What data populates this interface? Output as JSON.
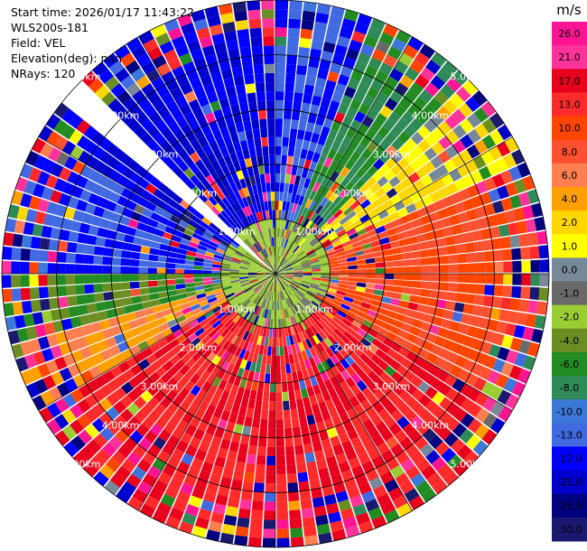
{
  "info": {
    "start_time": "Start time: 2026/01/17 11:43:22",
    "instrument": "WLS200s-181",
    "field": "Field: VEL",
    "elevation": "Elevation(deg): nan",
    "nrays": "NRays: 120"
  },
  "chart_data": {
    "type": "heatmap",
    "subtype": "polar-ppi",
    "field": "VEL",
    "units": "m/s",
    "nrays": 120,
    "range_max_km": 5.0,
    "range_rings_km": [
      1.0,
      2.0,
      3.0,
      4.0,
      5.0
    ],
    "ring_labels": [
      "1.00km",
      "2.00km",
      "3.00km",
      "4.00km",
      "5.00km"
    ],
    "missing_sector_deg": [
      310,
      316
    ],
    "colorbar": {
      "unit_label": "m/s",
      "ticks": [
        "26.0",
        "21.0",
        "17.0",
        "13.0",
        "10.0",
        "8.0",
        "6.0",
        "4.0",
        "2.0",
        "1.0",
        "0.0",
        "-1.0",
        "-2.0",
        "-4.0",
        "-6.0",
        "-8.0",
        "-10.0",
        "-13.0",
        "-17.0",
        "-21.0",
        "-26.0",
        "-30.0"
      ],
      "bands": [
        {
          "min": 26,
          "max": 30,
          "color": "#ff1493"
        },
        {
          "min": 21,
          "max": 26,
          "color": "#ff3399"
        },
        {
          "min": 17,
          "max": 21,
          "color": "#e8001c"
        },
        {
          "min": 13,
          "max": 17,
          "color": "#ff2a2a"
        },
        {
          "min": 10,
          "max": 13,
          "color": "#ff4500"
        },
        {
          "min": 8,
          "max": 10,
          "color": "#ff5030"
        },
        {
          "min": 6,
          "max": 8,
          "color": "#ff7f50"
        },
        {
          "min": 4,
          "max": 6,
          "color": "#ff9f00"
        },
        {
          "min": 2,
          "max": 4,
          "color": "#ffd700"
        },
        {
          "min": 1,
          "max": 2,
          "color": "#ffff00"
        },
        {
          "min": 0,
          "max": 1,
          "color": "#778899"
        },
        {
          "min": -1,
          "max": 0,
          "color": "#696969"
        },
        {
          "min": -2,
          "max": -1,
          "color": "#9acd32"
        },
        {
          "min": -4,
          "max": -2,
          "color": "#6b8e23"
        },
        {
          "min": -6,
          "max": -4,
          "color": "#228b22"
        },
        {
          "min": -8,
          "max": -6,
          "color": "#2e8b57"
        },
        {
          "min": -10,
          "max": -8,
          "color": "#3c78d8"
        },
        {
          "min": -13,
          "max": -10,
          "color": "#4169e1"
        },
        {
          "min": -17,
          "max": -13,
          "color": "#0000ff"
        },
        {
          "min": -21,
          "max": -17,
          "color": "#0000cd"
        },
        {
          "min": -26,
          "max": -21,
          "color": "#000080"
        },
        {
          "min": -30,
          "max": -26,
          "color": "#191970"
        }
      ]
    },
    "sector_velocity_estimates": [
      {
        "az_from": 300,
        "az_to": 360,
        "velocity": -17
      },
      {
        "az_from": 0,
        "az_to": 20,
        "velocity": -13
      },
      {
        "az_from": 20,
        "az_to": 45,
        "velocity": -6
      },
      {
        "az_from": 45,
        "az_to": 65,
        "velocity": 2
      },
      {
        "az_from": 65,
        "az_to": 120,
        "velocity": 10
      },
      {
        "az_from": 120,
        "az_to": 240,
        "velocity": 17
      },
      {
        "az_from": 240,
        "az_to": 255,
        "velocity": 6
      },
      {
        "az_from": 255,
        "az_to": 270,
        "velocity": -4
      },
      {
        "az_from": 270,
        "az_to": 300,
        "velocity": -13
      }
    ]
  }
}
